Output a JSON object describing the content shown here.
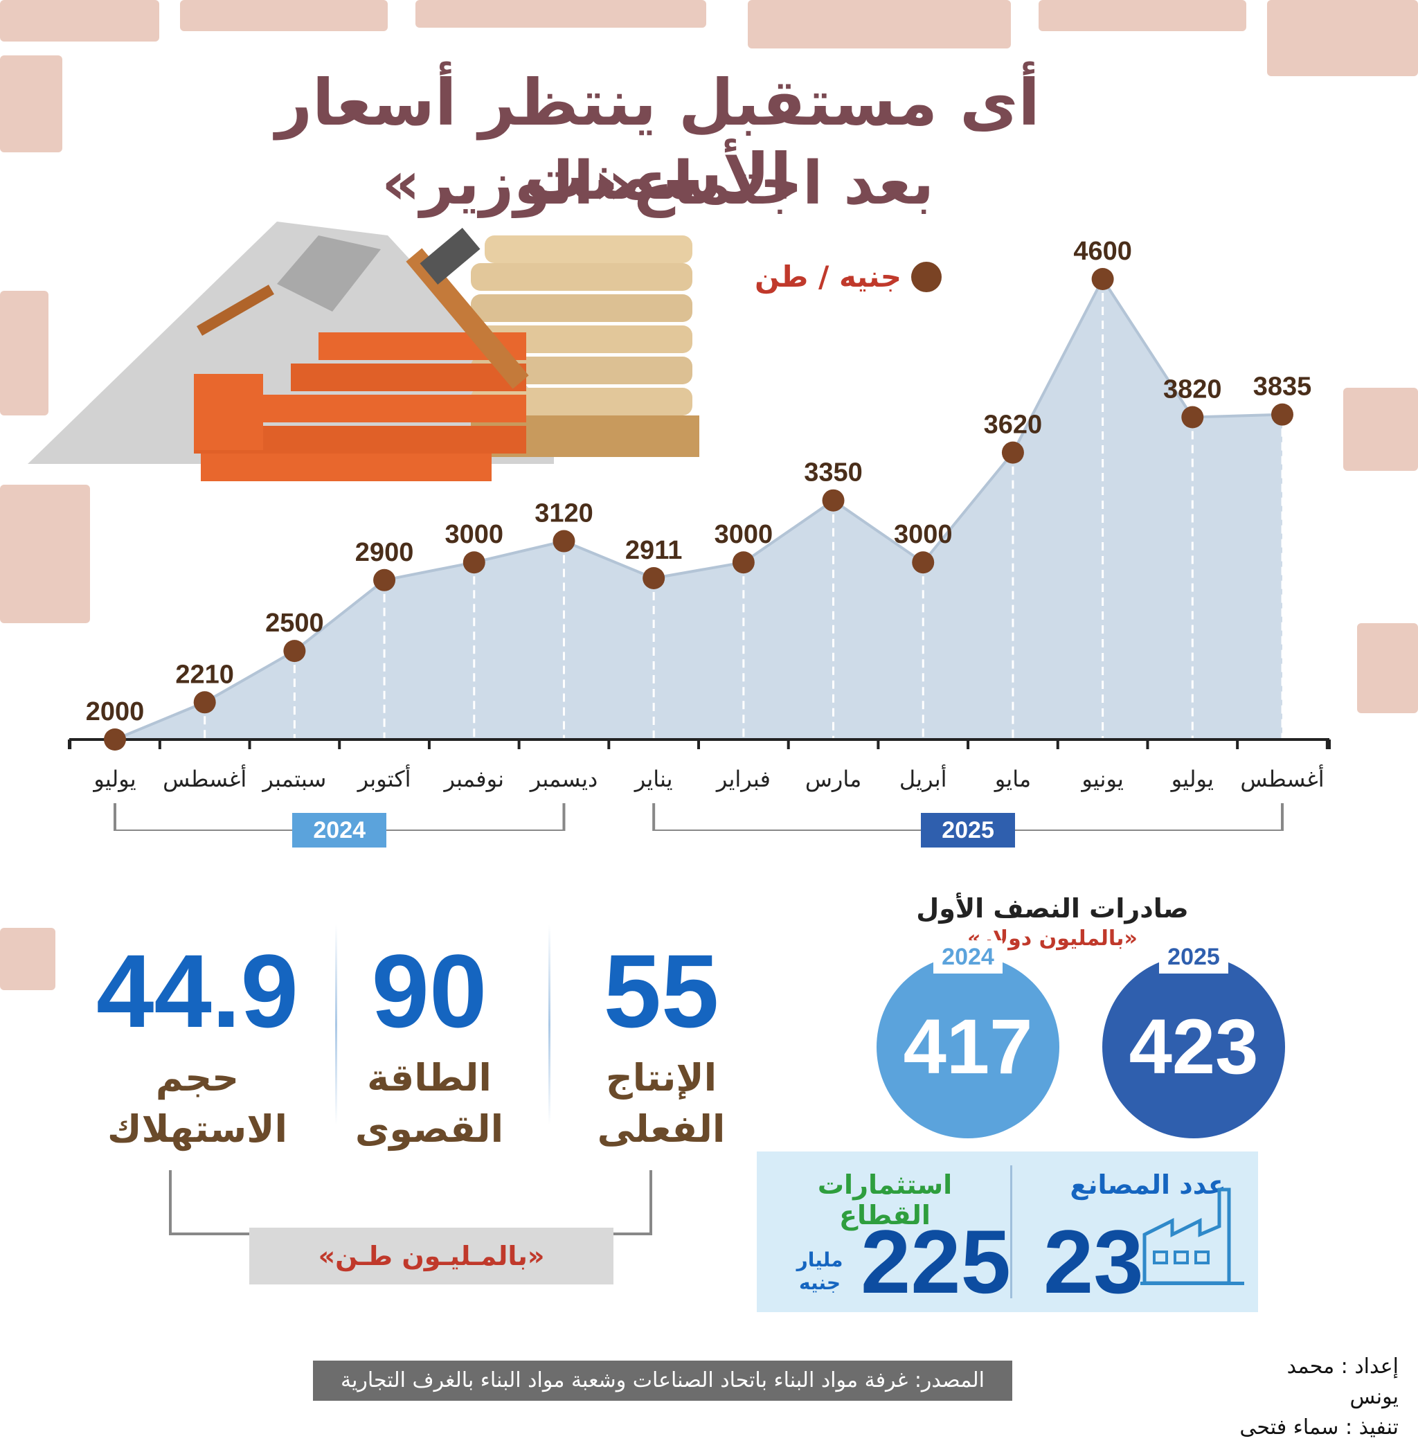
{
  "title": {
    "line1": "أى مستقبل ينتظر أسعار الأسمنت",
    "line2": "بعد اجتماع«الوزير»"
  },
  "legend": {
    "label": "جنيه / طن"
  },
  "chart_data": {
    "type": "line",
    "categories": [
      "يوليو",
      "أغسطس",
      "سبتمبر",
      "أكتوبر",
      "نوفمبر",
      "ديسمبر",
      "يناير",
      "فبراير",
      "مارس",
      "أبريل",
      "مايو",
      "يونيو",
      "يوليو",
      "أغسطس"
    ],
    "values": [
      2000,
      2210,
      2500,
      2900,
      3000,
      3120,
      2911,
      3000,
      3350,
      3000,
      3620,
      4600,
      3820,
      3835
    ],
    "value_labels": [
      "2000",
      "2210",
      "2500",
      "2900",
      "3000",
      "3120",
      "2911",
      "3000",
      "3350",
      "3000",
      "3620",
      "4600",
      "3820",
      "3835"
    ],
    "year_groups": [
      {
        "label": "2024",
        "from": 0,
        "to": 5,
        "color": "#5ba3dc"
      },
      {
        "label": "2025",
        "from": 6,
        "to": 13,
        "color": "#2f5fae"
      }
    ],
    "ylim": [
      2000,
      4600
    ],
    "area_color": "#c9d7e6",
    "point_color": "#7a4324"
  },
  "stats": {
    "items": [
      {
        "value": "55",
        "label1": "الإنتاج",
        "label2": "الفعلى"
      },
      {
        "value": "90",
        "label1": "الطاقة",
        "label2": "القصوى"
      },
      {
        "value": "44.9",
        "label1": "حجم",
        "label2": "الاستهلاك"
      }
    ],
    "unit": "«بالمـليـون طـن»"
  },
  "exports": {
    "title": "صادرات النصف الأول",
    "subtitle": "«بالمليون دولار»",
    "items": [
      {
        "year": "2025",
        "value": "423",
        "color": "#2f5fae"
      },
      {
        "year": "2024",
        "value": "417",
        "color": "#5ba3dc"
      }
    ]
  },
  "factories": {
    "label": "عدد المصانع",
    "value": "23"
  },
  "investments": {
    "label": "استثمارات القطاع",
    "value": "225",
    "unit": "مليار جنيه"
  },
  "source": "المصدر: غرفة مواد البناء باتحاد الصناعات وشعبة مواد البناء بالغرف التجارية",
  "credits": {
    "prepared": "إعداد : محمد يونس",
    "design": "تنفيذ : سماء فتحى"
  }
}
